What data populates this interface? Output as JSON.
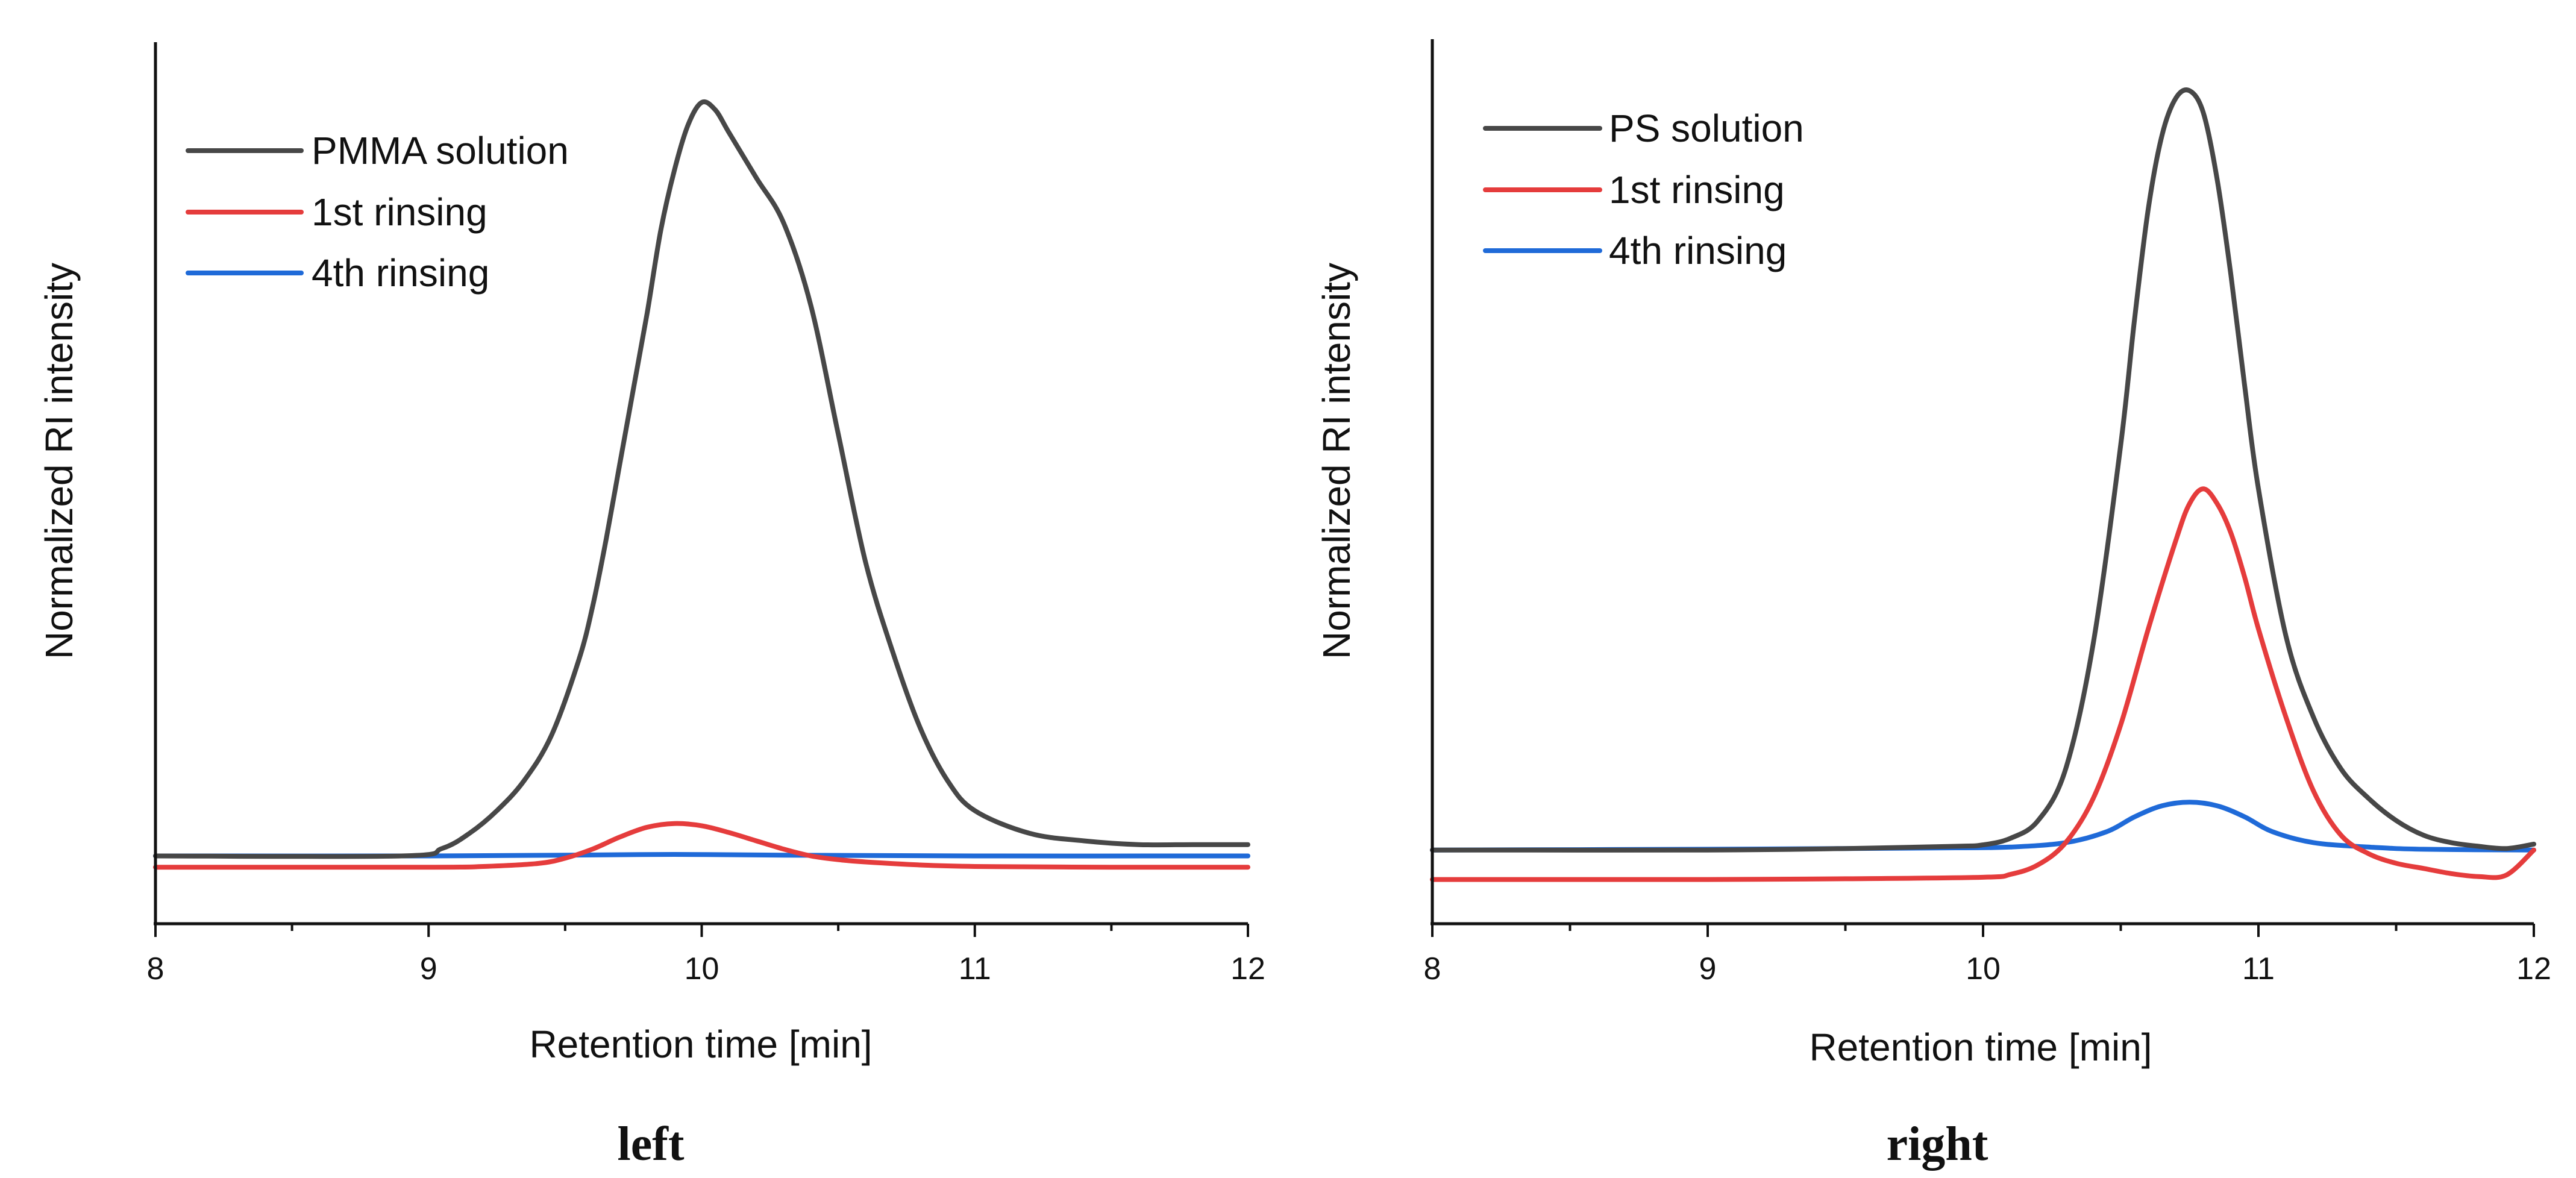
{
  "chart_data": [
    {
      "type": "line",
      "panel_label": "left",
      "xlabel": "Retention time [min]",
      "ylabel": "Normalized RI intensity",
      "xlim": [
        8,
        12
      ],
      "ylim": [
        -0.09,
        1.08
      ],
      "x_ticks": [
        "8",
        "9",
        "10",
        "11",
        "12"
      ],
      "y_ticks_shown": false,
      "legend_position": "top-left",
      "series": [
        {
          "name": "PMMA solution",
          "color": "#474747",
          "x": [
            8.0,
            8.9,
            9.05,
            9.15,
            9.25,
            9.35,
            9.45,
            9.55,
            9.6,
            9.65,
            9.7,
            9.75,
            9.8,
            9.85,
            9.9,
            9.95,
            10.0,
            10.05,
            10.1,
            10.2,
            10.3,
            10.4,
            10.5,
            10.6,
            10.7,
            10.8,
            10.9,
            11.0,
            11.2,
            11.4,
            11.6,
            11.8,
            12.0
          ],
          "y": [
            0.0,
            0.0,
            0.01,
            0.03,
            0.06,
            0.1,
            0.16,
            0.26,
            0.33,
            0.42,
            0.52,
            0.62,
            0.72,
            0.83,
            0.91,
            0.97,
            1.0,
            0.99,
            0.96,
            0.9,
            0.84,
            0.73,
            0.56,
            0.39,
            0.27,
            0.17,
            0.1,
            0.06,
            0.03,
            0.02,
            0.015,
            0.015,
            0.015
          ]
        },
        {
          "name": "1st rinsing",
          "color": "#e53c3c",
          "x": [
            8.0,
            9.0,
            9.2,
            9.4,
            9.5,
            9.6,
            9.7,
            9.8,
            9.9,
            10.0,
            10.1,
            10.2,
            10.3,
            10.4,
            10.5,
            10.6,
            10.8,
            11.0,
            11.5,
            12.0
          ],
          "y": [
            -0.015,
            -0.015,
            -0.014,
            -0.01,
            -0.003,
            0.009,
            0.025,
            0.038,
            0.043,
            0.04,
            0.031,
            0.02,
            0.009,
            0.0,
            -0.005,
            -0.008,
            -0.012,
            -0.014,
            -0.015,
            -0.015
          ]
        },
        {
          "name": "4th rinsing",
          "color": "#1f6ad8",
          "x": [
            8.0,
            9.0,
            9.5,
            9.9,
            10.3,
            11.0,
            12.0
          ],
          "y": [
            0.0,
            0.0,
            0.001,
            0.002,
            0.001,
            0.0,
            0.0
          ]
        }
      ]
    },
    {
      "type": "line",
      "panel_label": "right",
      "xlabel": "Retention time [min]",
      "ylabel": "Normalized RI intensity",
      "xlim": [
        8,
        12
      ],
      "ylim": [
        -0.1,
        1.1
      ],
      "x_ticks": [
        "8",
        "9",
        "10",
        "11",
        "12"
      ],
      "y_ticks_shown": false,
      "legend_position": "top-left",
      "series": [
        {
          "name": "PS solution",
          "color": "#474747",
          "x": [
            8.0,
            9.0,
            9.5,
            9.9,
            10.0,
            10.1,
            10.2,
            10.3,
            10.4,
            10.5,
            10.55,
            10.6,
            10.65,
            10.7,
            10.75,
            10.8,
            10.85,
            10.9,
            10.95,
            11.0,
            11.1,
            11.2,
            11.3,
            11.4,
            11.5,
            11.6,
            11.7,
            11.8,
            11.9,
            12.0
          ],
          "y": [
            0.0,
            0.0,
            0.002,
            0.005,
            0.007,
            0.016,
            0.04,
            0.11,
            0.28,
            0.55,
            0.72,
            0.87,
            0.97,
            1.02,
            1.03,
            1.0,
            0.91,
            0.78,
            0.63,
            0.49,
            0.29,
            0.18,
            0.11,
            0.07,
            0.04,
            0.02,
            0.01,
            0.005,
            0.002,
            0.008
          ]
        },
        {
          "name": "1st rinsing",
          "color": "#e53c3c",
          "x": [
            8.0,
            9.0,
            9.5,
            10.0,
            10.1,
            10.2,
            10.3,
            10.4,
            10.5,
            10.6,
            10.7,
            10.75,
            10.8,
            10.85,
            10.9,
            10.95,
            11.0,
            11.1,
            11.2,
            11.3,
            11.4,
            11.5,
            11.6,
            11.7,
            11.8,
            11.9,
            12.0
          ],
          "y": [
            -0.04,
            -0.04,
            -0.039,
            -0.037,
            -0.033,
            -0.02,
            0.01,
            0.07,
            0.17,
            0.3,
            0.42,
            0.47,
            0.49,
            0.47,
            0.43,
            0.37,
            0.3,
            0.18,
            0.08,
            0.02,
            -0.005,
            -0.018,
            -0.025,
            -0.032,
            -0.036,
            -0.034,
            0.0
          ]
        },
        {
          "name": "4th rinsing",
          "color": "#1f6ad8",
          "x": [
            8.0,
            9.0,
            9.5,
            9.9,
            10.1,
            10.3,
            10.45,
            10.55,
            10.65,
            10.75,
            10.85,
            10.95,
            11.05,
            11.2,
            11.4,
            11.6,
            12.0
          ],
          "y": [
            0.0,
            0.001,
            0.002,
            0.003,
            0.004,
            0.01,
            0.025,
            0.045,
            0.06,
            0.065,
            0.06,
            0.045,
            0.025,
            0.01,
            0.004,
            0.001,
            0.0
          ]
        }
      ]
    }
  ]
}
